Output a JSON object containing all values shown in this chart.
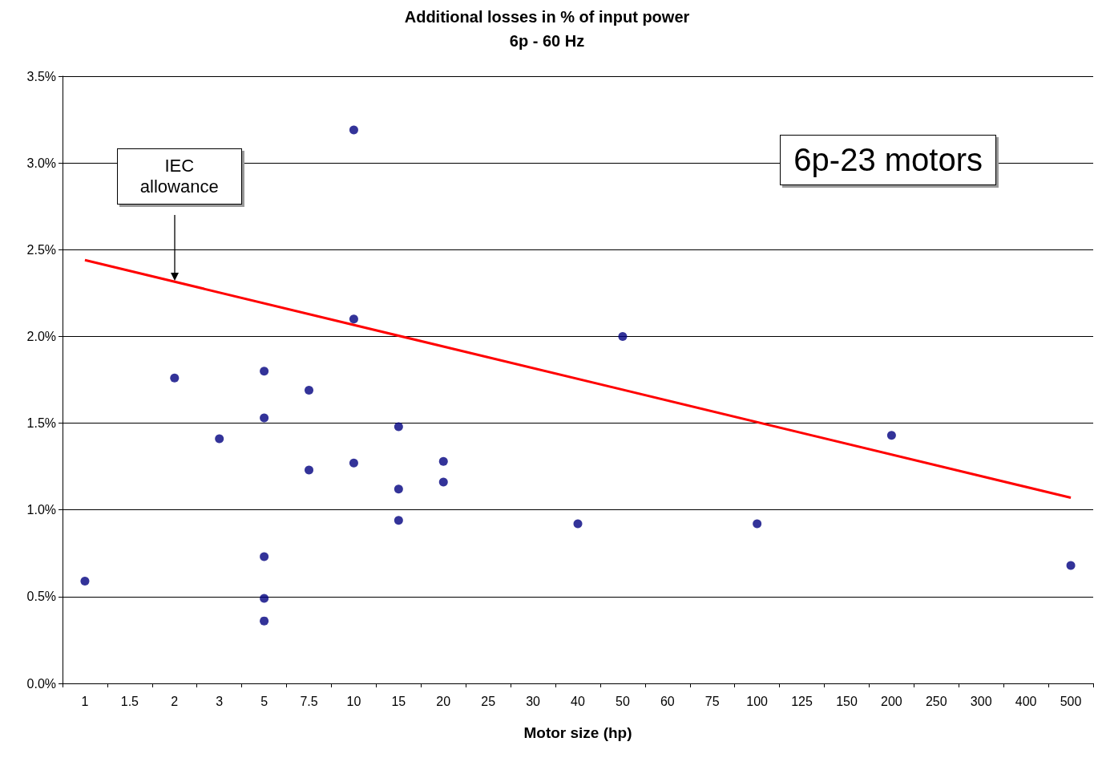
{
  "chart_data": {
    "type": "scatter",
    "title": "Additional losses in % of input power",
    "subtitle": "6p - 60 Hz",
    "xlabel": "Motor size (hp)",
    "categories": [
      "1",
      "1.5",
      "2",
      "3",
      "5",
      "7.5",
      "10",
      "15",
      "20",
      "25",
      "30",
      "40",
      "50",
      "60",
      "75",
      "100",
      "125",
      "150",
      "200",
      "250",
      "300",
      "400",
      "500"
    ],
    "series": [
      {
        "color": "#000080",
        "x": [
          "1",
          "2",
          "3",
          "5",
          "5",
          "5",
          "5",
          "5",
          "7.5",
          "7.5",
          "10",
          "10",
          "10",
          "15",
          "15",
          "15",
          "20",
          "20",
          "40",
          "50",
          "100",
          "200",
          "500"
        ],
        "values": [
          0.59,
          1.76,
          1.41,
          1.8,
          1.53,
          0.73,
          0.49,
          0.36,
          1.69,
          1.23,
          3.19,
          2.1,
          1.27,
          1.48,
          1.12,
          0.94,
          1.28,
          1.16,
          0.92,
          2.0,
          0.92,
          1.43,
          0.68
        ]
      },
      {
        "type": "line",
        "color": "#ff0000",
        "marker": "none",
        "x": [
          "1",
          "500"
        ],
        "values": [
          2.44,
          1.07
        ]
      }
    ],
    "ylim": [
      0,
      3.5
    ],
    "yticks": [
      {
        "value": 0,
        "label": "0.0%"
      },
      {
        "value": 0.5,
        "label": "0.5%"
      },
      {
        "value": 1,
        "label": "1.0%"
      },
      {
        "value": 1.5,
        "label": "1.5%"
      },
      {
        "value": 2,
        "label": "2.0%"
      },
      {
        "value": 2.5,
        "label": "2.5%"
      },
      {
        "value": 3,
        "label": "3.0%"
      },
      {
        "value": 3.5,
        "label": "3.5%"
      }
    ],
    "grid": "y",
    "marker": "circle",
    "annotations": [
      "IEC allowance",
      "6p-23 motors"
    ]
  }
}
